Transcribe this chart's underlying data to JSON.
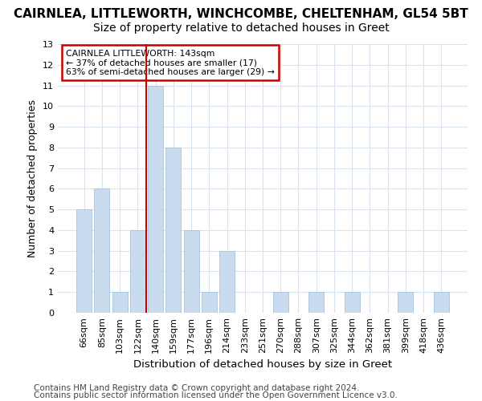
{
  "title1": "CAIRNLEA, LITTLEWORTH, WINCHCOMBE, CHELTENHAM, GL54 5BT",
  "title2": "Size of property relative to detached houses in Greet",
  "xlabel": "Distribution of detached houses by size in Greet",
  "ylabel": "Number of detached properties",
  "categories": [
    "66sqm",
    "85sqm",
    "103sqm",
    "122sqm",
    "140sqm",
    "159sqm",
    "177sqm",
    "196sqm",
    "214sqm",
    "233sqm",
    "251sqm",
    "270sqm",
    "288sqm",
    "307sqm",
    "325sqm",
    "344sqm",
    "362sqm",
    "381sqm",
    "399sqm",
    "418sqm",
    "436sqm"
  ],
  "values": [
    5,
    6,
    1,
    4,
    11,
    8,
    4,
    1,
    3,
    0,
    0,
    1,
    0,
    1,
    0,
    1,
    0,
    0,
    1,
    0,
    1
  ],
  "bar_color": "#c9dcef",
  "bar_edgecolor": "#a8c4dd",
  "red_line_index": 4,
  "ylim": [
    0,
    13
  ],
  "yticks": [
    0,
    1,
    2,
    3,
    4,
    5,
    6,
    7,
    8,
    9,
    10,
    11,
    12,
    13
  ],
  "annotation_title": "CAIRNLEA LITTLEWORTH: 143sqm",
  "annotation_line1": "← 37% of detached houses are smaller (17)",
  "annotation_line2": "63% of semi-detached houses are larger (29) →",
  "footnote1": "Contains HM Land Registry data © Crown copyright and database right 2024.",
  "footnote2": "Contains public sector information licensed under the Open Government Licence v3.0.",
  "background_color": "#ffffff",
  "grid_color": "#d8e4f0",
  "annotation_box_color": "#ffffff",
  "annotation_box_edgecolor": "#cc0000",
  "title1_fontsize": 11,
  "title2_fontsize": 10,
  "xlabel_fontsize": 9.5,
  "ylabel_fontsize": 9,
  "tick_fontsize": 8,
  "footnote_fontsize": 7.5
}
